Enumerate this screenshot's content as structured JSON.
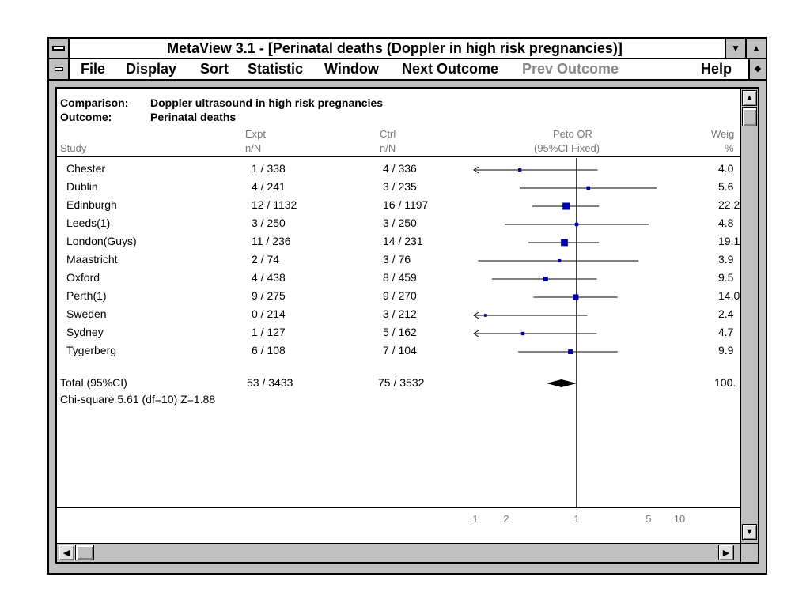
{
  "window": {
    "title": "MetaView 3.1 - [Perinatal deaths (Doppler in high risk pregnancies)]",
    "btn_minimize": "▼",
    "btn_maximize": "▲",
    "btn_restore": "◆"
  },
  "menu": {
    "items": [
      {
        "label": "File",
        "enabled": true
      },
      {
        "label": "Display",
        "enabled": true
      },
      {
        "label": "Sort",
        "enabled": true
      },
      {
        "label": "Statistic",
        "enabled": true
      },
      {
        "label": "Window",
        "enabled": true
      },
      {
        "label": "Next Outcome",
        "enabled": true
      },
      {
        "label": "Prev Outcome",
        "enabled": false
      },
      {
        "label": "Help",
        "enabled": true
      }
    ]
  },
  "header": {
    "comparison_label": "Comparison:",
    "comparison_value": "Doppler ultrasound in high risk pregnancies",
    "outcome_label": "Outcome:",
    "outcome_value": "Perinatal deaths"
  },
  "columns": {
    "study": "Study",
    "expt_top": "Expt",
    "expt_bottom": "n/N",
    "ctrl_top": "Ctrl",
    "ctrl_bottom": "n/N",
    "or_top": "Peto OR",
    "or_bottom": "(95%CI Fixed)",
    "weight_top": "Weig",
    "weight_bottom": "%"
  },
  "rows": [
    {
      "study": "Chester",
      "expt": "1  / 338",
      "ctrl": "4  / 336",
      "weight": "4.0"
    },
    {
      "study": "Dublin",
      "expt": "4  / 241",
      "ctrl": "3  / 235",
      "weight": "5.6"
    },
    {
      "study": "Edinburgh",
      "expt": "12  / 1132",
      "ctrl": "16  / 1197",
      "weight": "22.2"
    },
    {
      "study": "Leeds(1)",
      "expt": "3  / 250",
      "ctrl": "3  / 250",
      "weight": "4.8"
    },
    {
      "study": "London(Guys)",
      "expt": "11  / 236",
      "ctrl": "14  / 231",
      "weight": "19.1"
    },
    {
      "study": "Maastricht",
      "expt": "2  / 74",
      "ctrl": "3  / 76",
      "weight": "3.9"
    },
    {
      "study": "Oxford",
      "expt": "4  / 438",
      "ctrl": "8  / 459",
      "weight": "9.5"
    },
    {
      "study": "Perth(1)",
      "expt": "9  / 275",
      "ctrl": "9  / 270",
      "weight": "14.0"
    },
    {
      "study": "Sweden",
      "expt": "0  / 214",
      "ctrl": "3  / 212",
      "weight": "2.4"
    },
    {
      "study": "Sydney",
      "expt": "1  / 127",
      "ctrl": "5  / 162",
      "weight": "4.7"
    },
    {
      "study": "Tygerberg",
      "expt": "6  / 108",
      "ctrl": "7  / 104",
      "weight": "9.9"
    }
  ],
  "total": {
    "label": "Total (95%CI)",
    "expt": "53  / 3433",
    "ctrl": "75  / 3532",
    "weight": "100.",
    "chi_square": "Chi-square 5.61 (df=10)  Z=1.88"
  },
  "scroll": {
    "up": "▲",
    "down": "▼",
    "left": "◀",
    "right": "▶"
  },
  "chart_data": {
    "type": "forest",
    "title": "Peto OR (95%CI Fixed)",
    "scale": "log",
    "axis_ticks": [
      ".1",
      ".2",
      "1",
      "5",
      "10"
    ],
    "axis_tick_values": [
      0.1,
      0.2,
      1,
      5,
      10
    ],
    "xlim": [
      0.1,
      10
    ],
    "reference_line": 1,
    "studies": [
      {
        "name": "Chester",
        "or": 0.28,
        "lo": 0.07,
        "hi": 1.6,
        "weight": 4.0,
        "left_arrow": true
      },
      {
        "name": "Dublin",
        "or": 1.3,
        "lo": 0.28,
        "hi": 6.0,
        "weight": 5.6,
        "left_arrow": false
      },
      {
        "name": "Edinburgh",
        "or": 0.79,
        "lo": 0.37,
        "hi": 1.65,
        "weight": 22.2,
        "left_arrow": false
      },
      {
        "name": "Leeds(1)",
        "or": 1.0,
        "lo": 0.2,
        "hi": 5.0,
        "weight": 4.8,
        "left_arrow": false
      },
      {
        "name": "London(Guys)",
        "or": 0.76,
        "lo": 0.34,
        "hi": 1.65,
        "weight": 19.1,
        "left_arrow": false
      },
      {
        "name": "Maastricht",
        "or": 0.68,
        "lo": 0.11,
        "hi": 4.0,
        "weight": 3.9,
        "left_arrow": false
      },
      {
        "name": "Oxford",
        "or": 0.5,
        "lo": 0.15,
        "hi": 1.57,
        "weight": 9.5,
        "left_arrow": false
      },
      {
        "name": "Perth(1)",
        "or": 0.98,
        "lo": 0.38,
        "hi": 2.5,
        "weight": 14.0,
        "left_arrow": false
      },
      {
        "name": "Sweden",
        "or": 0.13,
        "lo": 0.07,
        "hi": 1.27,
        "weight": 2.4,
        "left_arrow": true
      },
      {
        "name": "Sydney",
        "or": 0.3,
        "lo": 0.07,
        "hi": 1.57,
        "weight": 4.7,
        "left_arrow": true
      },
      {
        "name": "Tygerberg",
        "or": 0.87,
        "lo": 0.27,
        "hi": 2.5,
        "weight": 9.9,
        "left_arrow": false
      }
    ],
    "total": {
      "or": 0.71,
      "lo": 0.51,
      "hi": 1.0
    }
  }
}
